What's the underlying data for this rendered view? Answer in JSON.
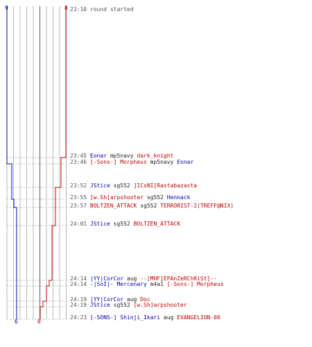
{
  "colors": {
    "team_blue": "#0000b0",
    "team_red": "#c00000",
    "grid_light": "#b8b8b8",
    "grid_dark": "#707070",
    "dash": "#b8b8b8",
    "time_text": "#555555"
  },
  "scores": {
    "blue_start": "9",
    "red_start": "8",
    "blue_end": "6",
    "red_end": "0"
  },
  "events": [
    {
      "time": "23:10",
      "text": "round started",
      "kind": "system"
    },
    {
      "time": "23:45",
      "killer": "Eonar",
      "killer_team": "blue",
      "weapon": "mp5navy",
      "victim": "dark_knight",
      "victim_team": "red"
    },
    {
      "time": "23:46",
      "killer": "[-Sons-] Morpheus",
      "killer_team": "red",
      "weapon": "mp5navy",
      "victim": "Eonar",
      "victim_team": "blue"
    },
    {
      "time": "23:52",
      "killer": "JStice",
      "killer_team": "blue",
      "weapon": "sg552",
      "victim": "]ICsNI[Rastabazasta",
      "victim_team": "red"
    },
    {
      "time": "23:55",
      "killer": "[w.Sh]arpshooter",
      "killer_team": "red",
      "weapon": "sg552",
      "victim": "Hennack",
      "victim_team": "blue"
    },
    {
      "time": "23:57",
      "killer": "BOLTZEN_ATTACK",
      "killer_team": "red",
      "weapon": "sg552",
      "victim": "TERRORIST-2(TREFF@NIX)",
      "victim_team": "red"
    },
    {
      "time": "24:01",
      "killer": "JStice",
      "killer_team": "blue",
      "weapon": "sg552",
      "victim": "BOLTZEN_ATTACK",
      "victim_team": "red"
    },
    {
      "time": "24:14",
      "killer": "|YY|CorCor",
      "killer_team": "blue",
      "weapon": "aug",
      "victim": "--[MHF]EPAnZeRChRiSt]--",
      "victim_team": "red"
    },
    {
      "time": "24:14",
      "killer": "-|SoI|- Mercenary",
      "killer_team": "blue",
      "weapon": "m4a1",
      "victim": "[-Sons-] Morpheus",
      "victim_team": "red"
    },
    {
      "time": "24:19",
      "killer": "|YY|CorCor",
      "killer_team": "blue",
      "weapon": "aug",
      "victim": "Doc",
      "victim_team": "red"
    },
    {
      "time": "24:19",
      "killer": "JStice",
      "killer_team": "blue",
      "weapon": "sg552",
      "victim": "[w.Sh]arpshooter",
      "victim_team": "red"
    },
    {
      "time": "24:23",
      "killer": "[-SONS-] Shinji_Ikari",
      "killer_team": "blue",
      "weapon": "aug",
      "victim": "EVANGELION-00",
      "victim_team": "red"
    }
  ]
}
